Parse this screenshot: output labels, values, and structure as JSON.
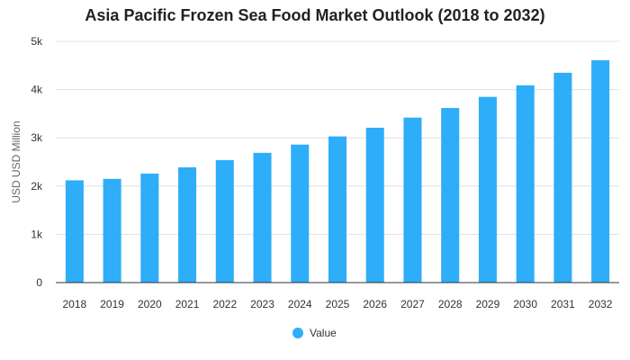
{
  "chart_data": {
    "type": "bar",
    "title": "Asia Pacific Frozen Sea Food Market Outlook (2018 to 2032)",
    "xlabel": "",
    "ylabel": "USD USD Million",
    "categories": [
      "2018",
      "2019",
      "2020",
      "2021",
      "2022",
      "2023",
      "2024",
      "2025",
      "2026",
      "2027",
      "2028",
      "2029",
      "2030",
      "2031",
      "2032"
    ],
    "series": [
      {
        "name": "Value",
        "values": [
          2120,
          2150,
          2260,
          2390,
          2540,
          2690,
          2860,
          3030,
          3210,
          3420,
          3620,
          3850,
          4090,
          4350,
          4610
        ],
        "color": "#2eadf8"
      }
    ],
    "ylim": [
      0,
      5000
    ],
    "yticks": [
      {
        "value": 0,
        "label": "0"
      },
      {
        "value": 1000,
        "label": "1k"
      },
      {
        "value": 2000,
        "label": "2k"
      },
      {
        "value": 3000,
        "label": "3k"
      },
      {
        "value": 4000,
        "label": "4k"
      },
      {
        "value": 5000,
        "label": "5k"
      }
    ],
    "grid": true,
    "legend_position": "bottom-center"
  }
}
